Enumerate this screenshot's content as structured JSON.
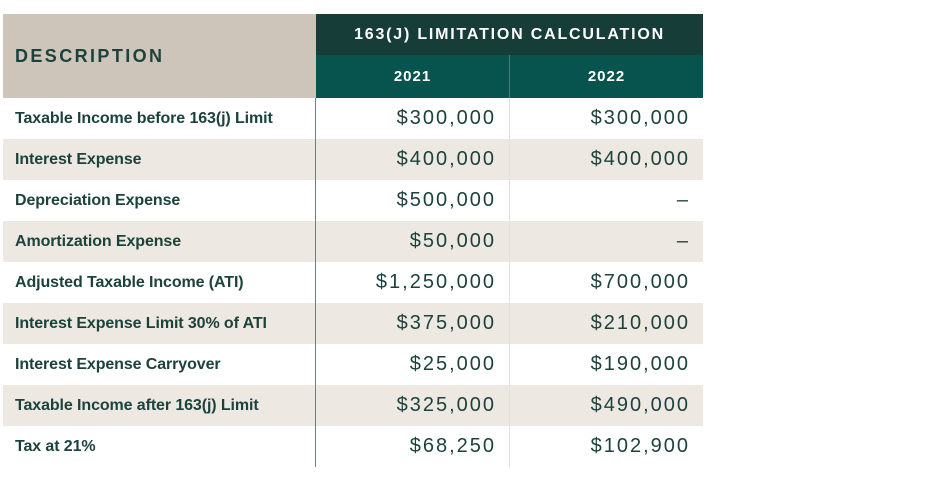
{
  "theme": {
    "header_dark": "#173d38",
    "header_teal": "#07534e",
    "header_beige": "#cdc5b9",
    "row_alt_beige": "#ede9e2",
    "text_green": "#1c423c",
    "divider_dark": "#6e807a",
    "divider_light": "#dee3e1"
  },
  "table": {
    "description_header": "DESCRIPTION",
    "group_header": "163(J) LIMITATION CALCULATION",
    "year_columns": [
      "2021",
      "2022"
    ],
    "rows": [
      {
        "label": "Taxable Income before 163(j) Limit",
        "y2021": "$300,000",
        "y2022": "$300,000"
      },
      {
        "label": "Interest Expense",
        "y2021": "$400,000",
        "y2022": "$400,000"
      },
      {
        "label": "Depreciation Expense",
        "y2021": "$500,000",
        "y2022": "–"
      },
      {
        "label": "Amortization Expense",
        "y2021": "$50,000",
        "y2022": "–"
      },
      {
        "label": "Adjusted Taxable Income (ATI)",
        "y2021": "$1,250,000",
        "y2022": "$700,000"
      },
      {
        "label": "Interest Expense Limit 30% of ATI",
        "y2021": "$375,000",
        "y2022": "$210,000"
      },
      {
        "label": "Interest Expense Carryover",
        "y2021": "$25,000",
        "y2022": "$190,000"
      },
      {
        "label": "Taxable Income after 163(j) Limit",
        "y2021": "$325,000",
        "y2022": "$490,000"
      },
      {
        "label": "Tax at 21%",
        "y2021": "$68,250",
        "y2022": "$102,900"
      }
    ]
  },
  "chart_data": {
    "type": "table",
    "title": "163(J) LIMITATION CALCULATION",
    "columns": [
      "DESCRIPTION",
      "2021",
      "2022"
    ],
    "rows": [
      [
        "Taxable Income before 163(j) Limit",
        "$300,000",
        "$300,000"
      ],
      [
        "Interest Expense",
        "$400,000",
        "$400,000"
      ],
      [
        "Depreciation Expense",
        "$500,000",
        "–"
      ],
      [
        "Amortization Expense",
        "$50,000",
        "–"
      ],
      [
        "Adjusted Taxable Income (ATI)",
        "$1,250,000",
        "$700,000"
      ],
      [
        "Interest Expense Limit 30% of ATI",
        "$375,000",
        "$210,000"
      ],
      [
        "Interest Expense Carryover",
        "$25,000",
        "$190,000"
      ],
      [
        "Taxable Income after 163(j) Limit",
        "$325,000",
        "$490,000"
      ],
      [
        "Tax at 21%",
        "$68,250",
        "$102,900"
      ]
    ],
    "numeric": {
      "2021": [
        300000,
        400000,
        500000,
        50000,
        1250000,
        375000,
        25000,
        325000,
        68250
      ],
      "2022": [
        300000,
        400000,
        null,
        null,
        700000,
        210000,
        190000,
        490000,
        102900
      ]
    }
  }
}
